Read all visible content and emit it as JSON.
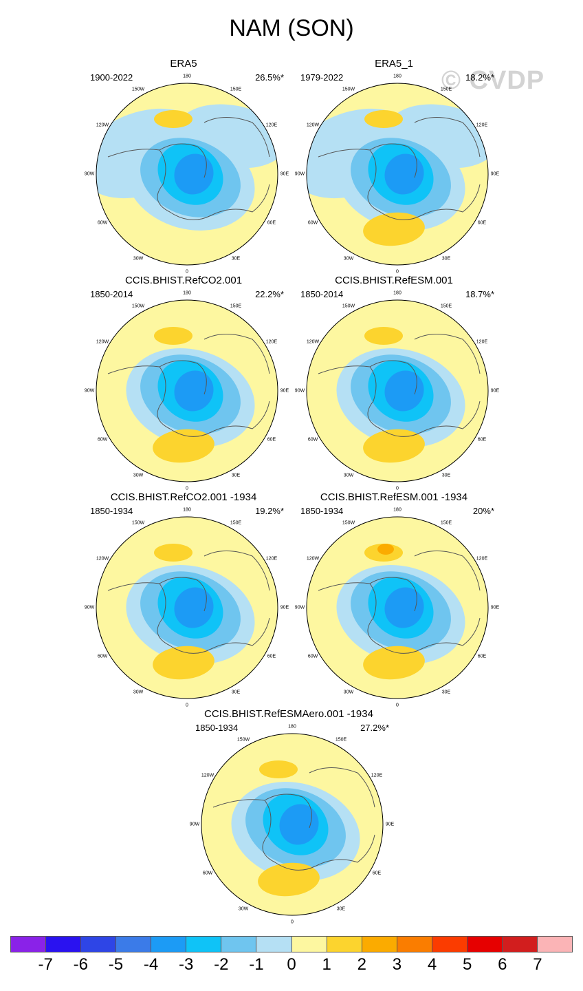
{
  "chart_data": {
    "type": "polar-map",
    "title": "NAM (SON)",
    "watermark": "© CVDP",
    "longitude_labels": [
      "180",
      "150E",
      "120E",
      "90E",
      "60E",
      "30E",
      "0",
      "30W",
      "60W",
      "90W",
      "120W",
      "150W"
    ],
    "panels": [
      {
        "title": "ERA5",
        "period": "1900-2022",
        "pct_variance": "26.5%*"
      },
      {
        "title": "ERA5_1",
        "period": "1979-2022",
        "pct_variance": "18.2%*"
      },
      {
        "title": "CCIS.BHIST.RefCO2.001",
        "period": "1850-2014",
        "pct_variance": "22.2%*"
      },
      {
        "title": "CCIS.BHIST.RefESM.001",
        "period": "1850-2014",
        "pct_variance": "18.7%*"
      },
      {
        "title": "CCIS.BHIST.RefCO2.001 -1934",
        "period": "1850-1934",
        "pct_variance": "19.2%*"
      },
      {
        "title": "CCIS.BHIST.RefESM.001 -1934",
        "period": "1850-1934",
        "pct_variance": "20%*"
      },
      {
        "title": "CCIS.BHIST.RefESMAero.001 -1934",
        "period": "1850-1934",
        "pct_variance": "27.2%*"
      }
    ],
    "colorbar": {
      "labels": [
        "-7",
        "-6",
        "-5",
        "-4",
        "-3",
        "-2",
        "-1",
        "0",
        "1",
        "2",
        "3",
        "4",
        "5",
        "6",
        "7"
      ],
      "colors": [
        "#8a22e8",
        "#2a12f0",
        "#2e45e6",
        "#3b7be8",
        "#1c9bf5",
        "#0fc3f7",
        "#6fc5ef",
        "#b5e0f4",
        "#fdf7a0",
        "#fcd42e",
        "#fbab00",
        "#fa7d00",
        "#fb3c00",
        "#e60000",
        "#d21e1e",
        "#fbb4b6"
      ]
    }
  }
}
